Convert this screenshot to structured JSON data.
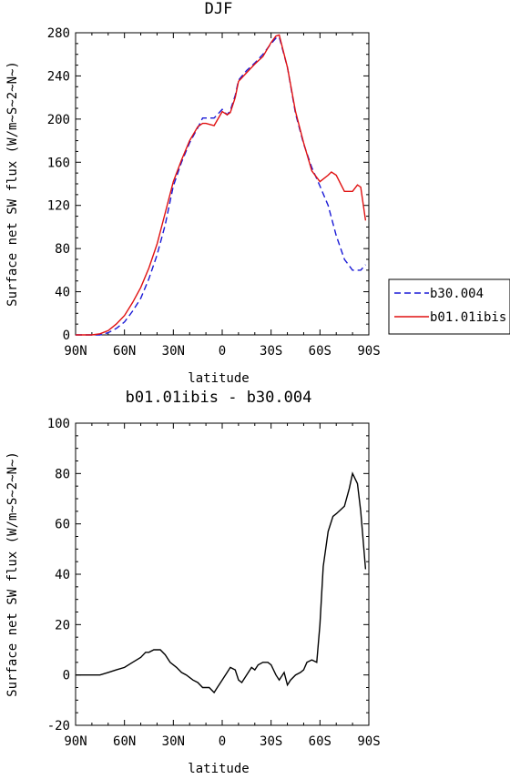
{
  "chart_data": [
    {
      "type": "line",
      "title": "DJF",
      "xlabel": "latitude",
      "ylabel": "Surface net SW flux (W/m~S~2~N~)",
      "xlim": [
        -90,
        90
      ],
      "ylim": [
        0,
        280
      ],
      "xticks": [
        -90,
        -60,
        -30,
        0,
        30,
        60,
        90
      ],
      "xtick_labels": [
        "90N",
        "60N",
        "30N",
        "0",
        "30S",
        "60S",
        "90S"
      ],
      "yticks": [
        0,
        40,
        80,
        120,
        160,
        200,
        240,
        280
      ],
      "ytick_labels": [
        "0",
        "40",
        "80",
        "120",
        "160",
        "200",
        "240",
        "280"
      ],
      "legend": "right",
      "series": [
        {
          "name": "b30.004",
          "color": "#1a1ad6",
          "dash": "dashed",
          "x": [
            -90,
            -85,
            -80,
            -75,
            -70,
            -65,
            -60,
            -55,
            -50,
            -45,
            -40,
            -35,
            -30,
            -25,
            -20,
            -15,
            -12,
            -10,
            -5,
            0,
            3,
            5,
            8,
            10,
            15,
            20,
            25,
            30,
            33,
            35,
            40,
            45,
            50,
            55,
            60,
            65,
            70,
            75,
            80,
            85,
            88
          ],
          "y": [
            0,
            0,
            0,
            0,
            2,
            6,
            12,
            22,
            34,
            52,
            74,
            102,
            138,
            160,
            178,
            192,
            201,
            201,
            201,
            209,
            204,
            208,
            222,
            236,
            245,
            252,
            260,
            270,
            275,
            276,
            248,
            205,
            177,
            155,
            138,
            120,
            92,
            70,
            60,
            60,
            65
          ]
        },
        {
          "name": "b01.01ibis",
          "color": "#e01010",
          "dash": "solid",
          "x": [
            -90,
            -85,
            -80,
            -75,
            -70,
            -65,
            -60,
            -55,
            -50,
            -45,
            -40,
            -35,
            -30,
            -25,
            -20,
            -15,
            -12,
            -10,
            -5,
            0,
            3,
            5,
            8,
            10,
            15,
            20,
            25,
            30,
            33,
            35,
            40,
            45,
            50,
            55,
            60,
            65,
            67,
            70,
            75,
            80,
            83,
            85,
            88
          ],
          "y": [
            0,
            0,
            0,
            1,
            4,
            10,
            18,
            30,
            44,
            62,
            84,
            113,
            142,
            162,
            180,
            193,
            196,
            196,
            194,
            207,
            204,
            206,
            220,
            235,
            243,
            251,
            258,
            271,
            277,
            278,
            248,
            207,
            178,
            152,
            142,
            148,
            151,
            148,
            133,
            133,
            139,
            137,
            106
          ]
        }
      ]
    },
    {
      "type": "line",
      "title": "b01.01ibis - b30.004",
      "xlabel": "latitude",
      "ylabel": "Surface net SW flux (W/m~S~2~N~)",
      "xlim": [
        -90,
        90
      ],
      "ylim": [
        -20,
        100
      ],
      "xticks": [
        -90,
        -60,
        -30,
        0,
        30,
        60,
        90
      ],
      "xtick_labels": [
        "90N",
        "60N",
        "30N",
        "0",
        "30S",
        "60S",
        "90S"
      ],
      "yticks": [
        -20,
        0,
        20,
        40,
        60,
        80,
        100
      ],
      "ytick_labels": [
        "-20",
        "0",
        "20",
        "40",
        "60",
        "80",
        "100"
      ],
      "series": [
        {
          "color": "#000000",
          "dash": "solid",
          "x": [
            -90,
            -85,
            -80,
            -75,
            -70,
            -65,
            -60,
            -55,
            -50,
            -47,
            -45,
            -42,
            -38,
            -35,
            -32,
            -28,
            -25,
            -22,
            -18,
            -15,
            -12,
            -8,
            -5,
            -3,
            0,
            3,
            5,
            8,
            10,
            12,
            15,
            18,
            20,
            22,
            25,
            28,
            30,
            33,
            35,
            38,
            40,
            42,
            45,
            48,
            50,
            52,
            55,
            58,
            60,
            62,
            65,
            68,
            70,
            75,
            78,
            80,
            83,
            85,
            88
          ],
          "y": [
            0,
            0,
            0,
            0,
            1,
            2,
            3,
            5,
            7,
            9,
            9,
            10,
            10,
            8,
            5,
            3,
            1,
            0,
            -2,
            -3,
            -5,
            -5,
            -7,
            -5,
            -2,
            1,
            3,
            2,
            -2,
            -3,
            0,
            3,
            2,
            4,
            5,
            5,
            4,
            0,
            -2,
            1,
            -4,
            -2,
            0,
            1,
            2,
            5,
            6,
            5,
            20,
            43,
            57,
            63,
            64,
            67,
            74,
            80,
            76,
            65,
            42
          ]
        }
      ]
    }
  ]
}
